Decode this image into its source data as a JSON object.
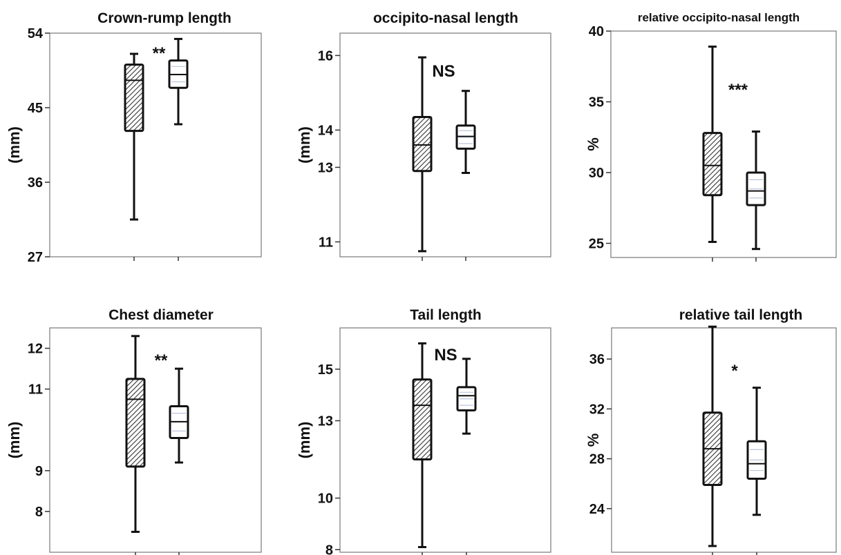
{
  "chart_data": [
    {
      "type": "box",
      "title": "Crown-rump length",
      "ylabel": "(mm)",
      "yticks": [
        27,
        36,
        45,
        54
      ],
      "ylim": [
        27,
        54
      ],
      "annotation": "**",
      "series": [
        {
          "min": 31.5,
          "q1": 42.2,
          "median": 48.3,
          "q3": 50.2,
          "max": 51.5
        },
        {
          "min": 43.0,
          "q1": 47.4,
          "median": 49.0,
          "q3": 50.7,
          "max": 53.3
        }
      ]
    },
    {
      "type": "box",
      "title": "occipito-nasal length",
      "ylabel": "(mm)",
      "yticks": [
        11,
        13,
        14,
        16
      ],
      "ylim": [
        10.6,
        16.6
      ],
      "annotation": "NS",
      "series": [
        {
          "min": 10.75,
          "q1": 12.9,
          "median": 13.6,
          "q3": 14.35,
          "max": 15.95
        },
        {
          "min": 12.85,
          "q1": 13.5,
          "median": 13.83,
          "q3": 14.12,
          "max": 15.05
        }
      ]
    },
    {
      "type": "box",
      "title": "relative occipito-nasal length",
      "ylabel": "%",
      "yticks": [
        25,
        30,
        35,
        40
      ],
      "ylim": [
        24,
        40
      ],
      "annotation": "***",
      "series": [
        {
          "min": 25.1,
          "q1": 28.4,
          "median": 30.5,
          "q3": 32.8,
          "max": 38.9
        },
        {
          "min": 24.6,
          "q1": 27.7,
          "median": 28.7,
          "q3": 30.0,
          "max": 32.9
        }
      ]
    },
    {
      "type": "box",
      "title": "Chest diameter",
      "ylabel": "(mm)",
      "yticks": [
        8,
        9,
        11,
        12
      ],
      "ylim": [
        7,
        12.5
      ],
      "annotation": "**",
      "series": [
        {
          "min": 7.5,
          "q1": 9.1,
          "median": 10.75,
          "q3": 11.25,
          "max": 12.3
        },
        {
          "min": 9.2,
          "q1": 9.8,
          "median": 10.2,
          "q3": 10.58,
          "max": 11.5
        }
      ]
    },
    {
      "type": "box",
      "title": "Tail length",
      "ylabel": "(mm)",
      "yticks": [
        8,
        10,
        13,
        15
      ],
      "ylim": [
        7.9,
        16.6
      ],
      "annotation": "NS",
      "series": [
        {
          "min": 8.1,
          "q1": 11.5,
          "median": 13.6,
          "q3": 14.6,
          "max": 16.0
        },
        {
          "min": 12.5,
          "q1": 13.4,
          "median": 13.97,
          "q3": 14.3,
          "max": 15.4
        }
      ]
    },
    {
      "type": "box",
      "title": "relative tail length",
      "ylabel": "%",
      "yticks": [
        24,
        28,
        32,
        36
      ],
      "ylim": [
        20.5,
        38.5
      ],
      "annotation": "*",
      "series": [
        {
          "min": 21.0,
          "q1": 25.9,
          "median": 28.8,
          "q3": 31.7,
          "max": 38.6
        },
        {
          "min": 23.5,
          "q1": 26.4,
          "median": 27.6,
          "q3": 29.4,
          "max": 33.7
        }
      ]
    }
  ]
}
